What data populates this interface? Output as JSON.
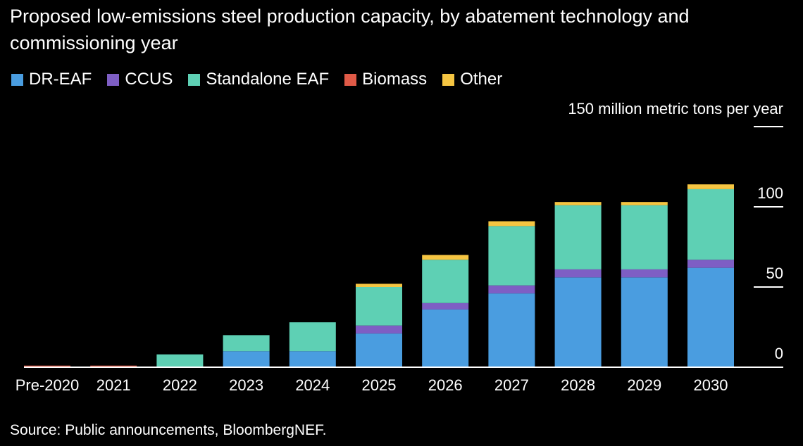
{
  "chart_data": {
    "type": "bar",
    "stacked": true,
    "title": "Proposed low-emissions steel production capacity, by abatement technology and commissioning year",
    "unit_label": "150 million metric tons per year",
    "categories": [
      "Pre-2020",
      "2021",
      "2022",
      "2023",
      "2024",
      "2025",
      "2026",
      "2027",
      "2028",
      "2029",
      "2030"
    ],
    "ylim": [
      0,
      150
    ],
    "yticks": [
      {
        "value": 0,
        "label": "0"
      },
      {
        "value": 50,
        "label": "50"
      },
      {
        "value": 100,
        "label": "100"
      }
    ],
    "grid": false,
    "legend_position": "top-left",
    "series": [
      {
        "name": "DR-EAF",
        "color": "#4a9de0",
        "values": [
          0,
          0,
          0,
          10,
          10,
          21,
          36,
          46,
          56,
          56,
          62
        ]
      },
      {
        "name": "CCUS",
        "color": "#7e5ec4",
        "values": [
          0,
          0,
          0,
          0,
          0,
          5,
          4,
          5,
          5,
          5,
          5
        ]
      },
      {
        "name": "Standalone EAF",
        "color": "#5ed0b4",
        "values": [
          0,
          0,
          8,
          10,
          18,
          24,
          27,
          37,
          40,
          40,
          44
        ]
      },
      {
        "name": "Biomass",
        "color": "#e05a47",
        "values": [
          1,
          1,
          0,
          0,
          0,
          0,
          0,
          0,
          0,
          0,
          0
        ]
      },
      {
        "name": "Other",
        "color": "#f5c542",
        "values": [
          0,
          0,
          0,
          0,
          0,
          2,
          3,
          3,
          2,
          2,
          3
        ]
      }
    ]
  },
  "source_text": "Source: Public announcements, BloombergNEF."
}
